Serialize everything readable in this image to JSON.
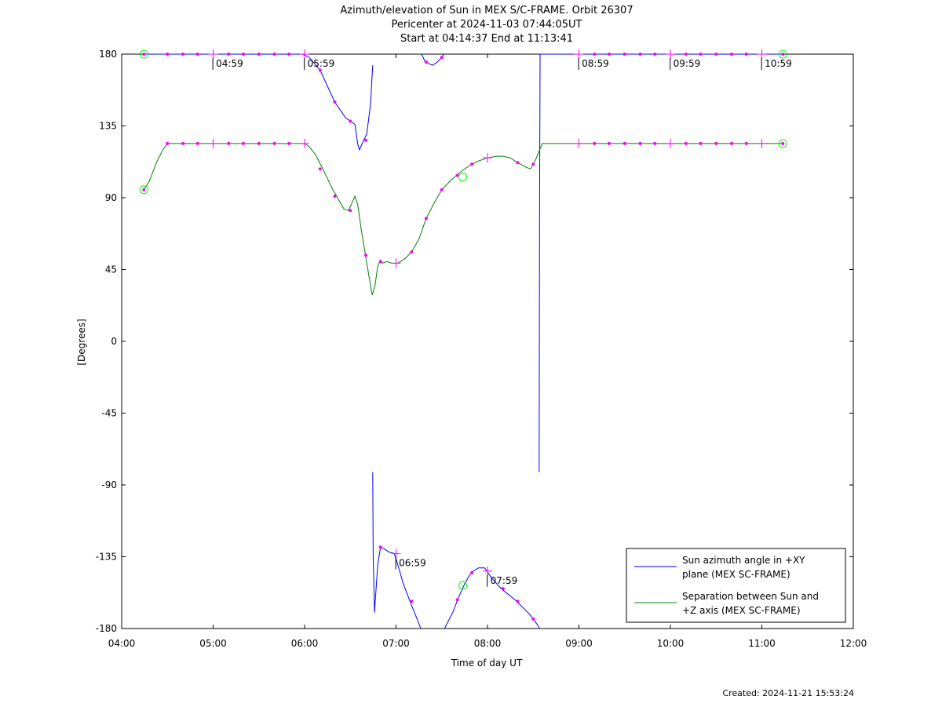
{
  "chart_data": {
    "type": "line",
    "title_lines": [
      "Azimuth/elevation of Sun in MEX S/C-FRAME.  Orbit 26307",
      "Pericenter at 2024-11-03 07:44:05UT",
      "Start at 04:14:37 End at 11:13:41"
    ],
    "xlabel": "Time of day UT",
    "ylabel": "[Degrees]",
    "xlim": [
      4.0,
      12.0
    ],
    "ylim": [
      -180,
      180
    ],
    "x_ticks": [
      4,
      5,
      6,
      7,
      8,
      9,
      10,
      11,
      12
    ],
    "x_tick_labels": [
      "04:00",
      "05:00",
      "06:00",
      "07:00",
      "08:00",
      "09:00",
      "10:00",
      "11:00",
      "12:00"
    ],
    "y_ticks": [
      -180,
      -135,
      -90,
      -45,
      0,
      45,
      90,
      135,
      180
    ],
    "y_tick_labels": [
      "-180",
      "-135",
      "-90",
      "-45",
      "0",
      "45",
      "90",
      "135",
      "180"
    ],
    "legend_position": "bottom-right",
    "series": [
      {
        "name": "Sun azimuth angle in +XY plane (MEX SC-FRAME)",
        "legend_lines": [
          "Sun azimuth angle in +XY",
          "plane (MEX SC-FRAME)"
        ],
        "color": "#0000ff",
        "segments": [
          [
            [
              4.243,
              180
            ],
            [
              5.0,
              180
            ],
            [
              5.98,
              180
            ],
            [
              6.05,
              178
            ],
            [
              6.17,
              170
            ],
            [
              6.33,
              150
            ],
            [
              6.45,
              140
            ],
            [
              6.5,
              138
            ],
            [
              6.55,
              136
            ],
            [
              6.58,
              124
            ],
            [
              6.6,
              120
            ],
            [
              6.63,
              124
            ],
            [
              6.68,
              130
            ],
            [
              6.72,
              148
            ],
            [
              6.745,
              173
            ]
          ],
          [
            [
              6.745,
              -82
            ],
            [
              6.75,
              -135
            ],
            [
              6.765,
              -170
            ],
            [
              6.77,
              -165
            ],
            [
              6.8,
              -140
            ],
            [
              6.83,
              -129
            ],
            [
              6.87,
              -130
            ],
            [
              6.92,
              -132
            ],
            [
              6.98,
              -133
            ],
            [
              7.02,
              -140
            ],
            [
              7.08,
              -152
            ],
            [
              7.16,
              -164
            ],
            [
              7.23,
              -174
            ],
            [
              7.27,
              -180
            ]
          ],
          [
            [
              7.28,
              180
            ],
            [
              7.32,
              175
            ],
            [
              7.4,
              173
            ],
            [
              7.45,
              175
            ],
            [
              7.5,
              178
            ],
            [
              7.52,
              180
            ]
          ],
          [
            [
              7.53,
              -180
            ],
            [
              7.62,
              -170
            ],
            [
              7.68,
              -161
            ],
            [
              7.75,
              -152
            ],
            [
              7.82,
              -145
            ],
            [
              7.9,
              -142
            ],
            [
              7.97,
              -142
            ],
            [
              8.04,
              -148
            ],
            [
              8.15,
              -155
            ],
            [
              8.3,
              -162
            ],
            [
              8.46,
              -171
            ],
            [
              8.55,
              -178
            ],
            [
              8.57,
              -180
            ]
          ],
          [
            [
              8.565,
              -82
            ],
            [
              8.57,
              90
            ],
            [
              8.575,
              180
            ],
            [
              9.0,
              180
            ],
            [
              10.0,
              180
            ],
            [
              11.23,
              180
            ]
          ]
        ]
      },
      {
        "name": "Separation between Sun and +Z axis (MEX SC-FRAME)",
        "legend_lines": [
          "Separation between Sun and",
          "+Z axis (MEX SC-FRAME)"
        ],
        "color": "#008000",
        "segments": [
          [
            [
              4.243,
              95
            ],
            [
              4.3,
              100
            ],
            [
              4.38,
              112
            ],
            [
              4.45,
              120
            ],
            [
              4.5,
              124
            ],
            [
              5.0,
              124
            ],
            [
              6.0,
              124
            ],
            [
              6.05,
              122
            ],
            [
              6.12,
              117
            ],
            [
              6.2,
              108
            ],
            [
              6.3,
              96
            ],
            [
              6.38,
              88
            ],
            [
              6.43,
              83
            ],
            [
              6.48,
              82
            ],
            [
              6.52,
              87
            ],
            [
              6.55,
              91
            ],
            [
              6.58,
              86
            ],
            [
              6.62,
              70
            ],
            [
              6.66,
              56
            ],
            [
              6.7,
              42
            ],
            [
              6.74,
              29
            ],
            [
              6.77,
              35
            ],
            [
              6.8,
              47
            ],
            [
              6.83,
              51
            ],
            [
              6.85,
              49
            ],
            [
              6.9,
              50
            ],
            [
              6.95,
              49
            ],
            [
              7.02,
              49
            ],
            [
              7.1,
              52
            ],
            [
              7.17,
              56
            ],
            [
              7.25,
              64
            ],
            [
              7.33,
              77
            ],
            [
              7.42,
              87
            ],
            [
              7.5,
              95
            ],
            [
              7.6,
              101
            ],
            [
              7.7,
              106
            ],
            [
              7.8,
              110
            ],
            [
              7.9,
              113
            ],
            [
              8.0,
              115
            ],
            [
              8.1,
              116
            ],
            [
              8.17,
              116
            ],
            [
              8.25,
              115
            ],
            [
              8.33,
              112
            ],
            [
              8.43,
              109
            ],
            [
              8.47,
              108
            ],
            [
              8.52,
              113
            ],
            [
              8.57,
              120
            ],
            [
              8.6,
              124
            ],
            [
              9.0,
              124
            ],
            [
              10.0,
              124
            ],
            [
              11.23,
              124
            ]
          ]
        ]
      }
    ],
    "markers": {
      "color": "#ff00ff",
      "dots": [
        [
          4.243,
          180
        ],
        [
          4.5,
          180
        ],
        [
          4.67,
          180
        ],
        [
          4.83,
          180
        ],
        [
          5.17,
          180
        ],
        [
          5.33,
          180
        ],
        [
          5.5,
          180
        ],
        [
          5.67,
          180
        ],
        [
          5.83,
          180
        ],
        [
          6.17,
          170
        ],
        [
          6.33,
          150
        ],
        [
          6.5,
          138
        ],
        [
          6.67,
          126
        ],
        [
          6.83,
          -129
        ],
        [
          7.17,
          -163
        ],
        [
          7.33,
          175
        ],
        [
          7.5,
          178
        ],
        [
          7.67,
          -162
        ],
        [
          7.83,
          -145
        ],
        [
          8.17,
          -155
        ],
        [
          8.33,
          -163
        ],
        [
          8.5,
          -174
        ],
        [
          9.17,
          180
        ],
        [
          9.33,
          180
        ],
        [
          9.5,
          180
        ],
        [
          9.67,
          180
        ],
        [
          9.83,
          180
        ],
        [
          10.17,
          180
        ],
        [
          10.33,
          180
        ],
        [
          10.5,
          180
        ],
        [
          10.67,
          180
        ],
        [
          10.83,
          180
        ],
        [
          11.23,
          180
        ],
        [
          4.243,
          95
        ],
        [
          4.5,
          124
        ],
        [
          4.67,
          124
        ],
        [
          4.83,
          124
        ],
        [
          5.17,
          124
        ],
        [
          5.33,
          124
        ],
        [
          5.5,
          124
        ],
        [
          5.67,
          124
        ],
        [
          5.83,
          124
        ],
        [
          6.17,
          108
        ],
        [
          6.33,
          91
        ],
        [
          6.5,
          82
        ],
        [
          6.67,
          54
        ],
        [
          6.83,
          50
        ],
        [
          7.17,
          56
        ],
        [
          7.33,
          77
        ],
        [
          7.5,
          95
        ],
        [
          7.67,
          104
        ],
        [
          7.83,
          111
        ],
        [
          8.33,
          112
        ],
        [
          8.5,
          111
        ],
        [
          9.17,
          124
        ],
        [
          9.33,
          124
        ],
        [
          9.5,
          124
        ],
        [
          9.67,
          124
        ],
        [
          9.83,
          124
        ],
        [
          10.17,
          124
        ],
        [
          10.33,
          124
        ],
        [
          10.5,
          124
        ],
        [
          10.67,
          124
        ],
        [
          10.83,
          124
        ],
        [
          11.23,
          124
        ]
      ],
      "hour_ticks": [
        [
          5.0,
          180
        ],
        [
          6.0,
          180
        ],
        [
          7.0,
          -133
        ],
        [
          8.0,
          -144
        ],
        [
          9.0,
          180
        ],
        [
          10.0,
          180
        ],
        [
          11.0,
          180
        ],
        [
          5.0,
          124
        ],
        [
          6.0,
          124
        ],
        [
          7.0,
          49
        ],
        [
          8.0,
          115
        ],
        [
          9.0,
          124
        ],
        [
          10.0,
          124
        ],
        [
          11.0,
          124
        ]
      ]
    },
    "circles": {
      "color": "#00ff00",
      "points": [
        [
          4.243,
          180
        ],
        [
          4.243,
          95
        ],
        [
          11.23,
          180
        ],
        [
          11.23,
          124
        ],
        [
          7.73,
          -153
        ],
        [
          7.73,
          103
        ]
      ]
    },
    "time_labels": [
      {
        "text": "04:59",
        "x": 4.98,
        "y": 180
      },
      {
        "text": "05:59",
        "x": 5.98,
        "y": 180
      },
      {
        "text": "06:59",
        "x": 6.98,
        "y": -133
      },
      {
        "text": "07:59",
        "x": 7.98,
        "y": -144
      },
      {
        "text": "08:59",
        "x": 8.98,
        "y": 180
      },
      {
        "text": "09:59",
        "x": 9.98,
        "y": 180
      },
      {
        "text": "10:59",
        "x": 10.98,
        "y": 180
      }
    ]
  },
  "footer": {
    "created": "Created: 2024-11-21 15:53:24"
  }
}
